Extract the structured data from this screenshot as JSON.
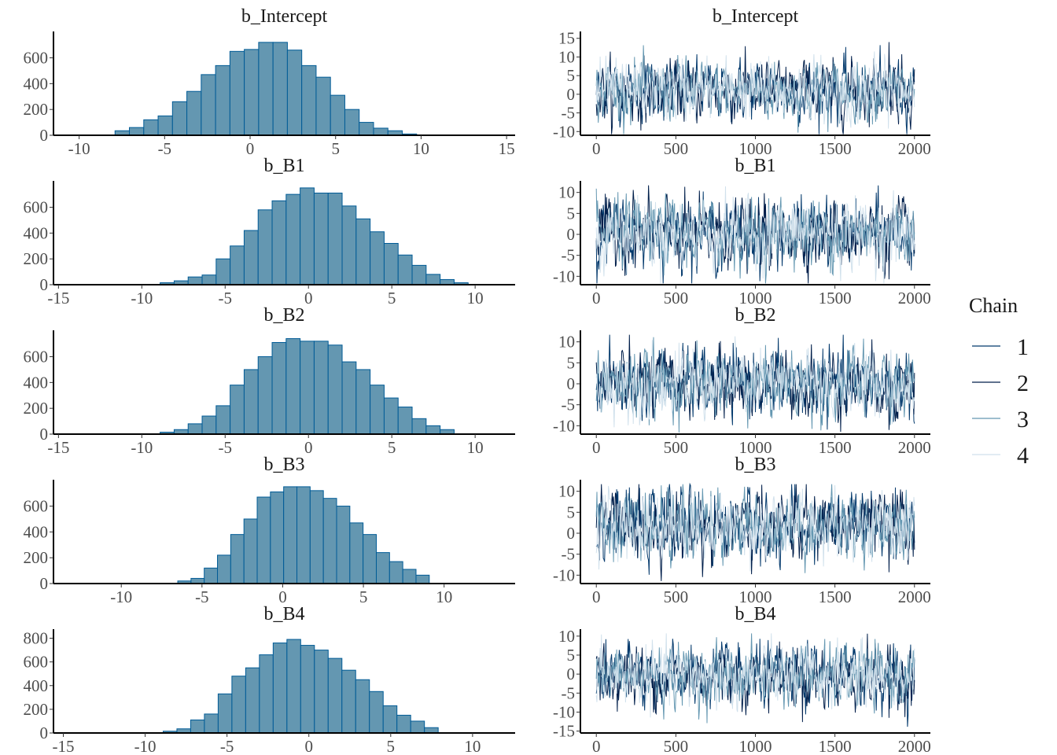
{
  "legend": {
    "title": "Chain",
    "items": [
      {
        "label": "1",
        "color": "#03396c"
      },
      {
        "label": "2",
        "color": "#011f4b"
      },
      {
        "label": "3",
        "color": "#6497b1"
      },
      {
        "label": "4",
        "color": "#d1e1ec"
      }
    ]
  },
  "colors": {
    "hist_fill": "#6497b1",
    "hist_stroke": "#005b96",
    "axis": "#000000",
    "tick_text": "#4d4d4d"
  },
  "chart_data": [
    {
      "type": "bar",
      "panel": "histogram",
      "title": "b_Intercept",
      "xlim": [
        -11.5,
        15.5
      ],
      "xticks": [
        -10,
        -5,
        0,
        5,
        10,
        15
      ],
      "ylim": [
        0,
        780
      ],
      "yticks": [
        0,
        200,
        400,
        600
      ],
      "bin_start": -7.9,
      "bin_width": 0.84,
      "values": [
        35,
        60,
        120,
        150,
        260,
        340,
        470,
        540,
        650,
        665,
        720,
        720,
        660,
        540,
        450,
        310,
        200,
        100,
        55,
        35,
        10
      ]
    },
    {
      "type": "line",
      "panel": "trace",
      "title": "b_Intercept",
      "xlim": [
        -100,
        2100
      ],
      "xticks": [
        0,
        500,
        1000,
        1500,
        2000
      ],
      "ylim": [
        -11,
        16
      ],
      "yticks": [
        -10,
        -5,
        0,
        5,
        10,
        15
      ],
      "center": 1,
      "spread": 3.9,
      "iterations": 2000,
      "chains": 4
    },
    {
      "type": "bar",
      "panel": "histogram",
      "title": "b_B1",
      "xlim": [
        -15.3,
        12.4
      ],
      "xticks": [
        -15,
        -10,
        -5,
        0,
        5,
        10
      ],
      "ylim": [
        0,
        780
      ],
      "yticks": [
        0,
        200,
        400,
        600
      ],
      "bin_start": -8.9,
      "bin_width": 0.84,
      "values": [
        15,
        30,
        60,
        75,
        200,
        300,
        420,
        580,
        650,
        700,
        750,
        710,
        710,
        610,
        510,
        410,
        320,
        230,
        150,
        80,
        40,
        15
      ]
    },
    {
      "type": "line",
      "panel": "trace",
      "title": "b_B1",
      "xlim": [
        -100,
        2100
      ],
      "xticks": [
        0,
        500,
        1000,
        1500,
        2000
      ],
      "ylim": [
        -12,
        12
      ],
      "yticks": [
        -10,
        -5,
        0,
        5,
        10
      ],
      "center": 0.3,
      "spread": 3.9,
      "iterations": 2000,
      "chains": 4
    },
    {
      "type": "bar",
      "panel": "histogram",
      "title": "b_B2",
      "xlim": [
        -15.3,
        12.4
      ],
      "xticks": [
        -15,
        -10,
        -5,
        0,
        5,
        10
      ],
      "ylim": [
        0,
        780
      ],
      "yticks": [
        0,
        200,
        400,
        600
      ],
      "bin_start": -8.9,
      "bin_width": 0.84,
      "values": [
        15,
        35,
        80,
        140,
        220,
        380,
        500,
        600,
        710,
        740,
        720,
        720,
        690,
        560,
        500,
        380,
        280,
        210,
        120,
        65,
        35
      ]
    },
    {
      "type": "line",
      "panel": "trace",
      "title": "b_B2",
      "xlim": [
        -100,
        2100
      ],
      "xticks": [
        0,
        500,
        1000,
        1500,
        2000
      ],
      "ylim": [
        -12,
        12
      ],
      "yticks": [
        -10,
        -5,
        0,
        5,
        10
      ],
      "center": 0,
      "spread": 3.9,
      "iterations": 2000,
      "chains": 4
    },
    {
      "type": "bar",
      "panel": "histogram",
      "title": "b_B3",
      "xlim": [
        -14.2,
        14.4
      ],
      "xticks": [
        -10,
        -5,
        0,
        5,
        10
      ],
      "ylim": [
        0,
        780
      ],
      "yticks": [
        0,
        200,
        400,
        600
      ],
      "bin_start": -6.5,
      "bin_width": 0.82,
      "values": [
        20,
        40,
        120,
        220,
        380,
        500,
        670,
        710,
        750,
        750,
        720,
        660,
        600,
        470,
        380,
        240,
        170,
        110,
        65
      ]
    },
    {
      "type": "line",
      "panel": "trace",
      "title": "b_B3",
      "xlim": [
        -100,
        2100
      ],
      "xticks": [
        0,
        500,
        1000,
        1500,
        2000
      ],
      "ylim": [
        -12,
        12
      ],
      "yticks": [
        -10,
        -5,
        0,
        5,
        10
      ],
      "center": 1.7,
      "spread": 3.9,
      "iterations": 2000,
      "chains": 4
    },
    {
      "type": "bar",
      "panel": "histogram",
      "title": "b_B4",
      "xlim": [
        -15.6,
        12.6
      ],
      "xticks": [
        -15,
        -10,
        -5,
        0,
        5,
        10
      ],
      "ylim": [
        0,
        850
      ],
      "yticks": [
        0,
        200,
        400,
        600,
        800
      ],
      "bin_start": -8.9,
      "bin_width": 0.84,
      "values": [
        15,
        35,
        110,
        160,
        330,
        480,
        550,
        660,
        760,
        790,
        740,
        700,
        630,
        530,
        450,
        350,
        230,
        150,
        100,
        45
      ]
    },
    {
      "type": "line",
      "panel": "trace",
      "title": "b_B4",
      "xlim": [
        -100,
        2100
      ],
      "xticks": [
        0,
        500,
        1000,
        1500,
        2000
      ],
      "ylim": [
        -15.5,
        11
      ],
      "yticks": [
        -15,
        -10,
        -5,
        0,
        5,
        10
      ],
      "center": -0.5,
      "spread": 3.9,
      "iterations": 2000,
      "chains": 4
    }
  ]
}
